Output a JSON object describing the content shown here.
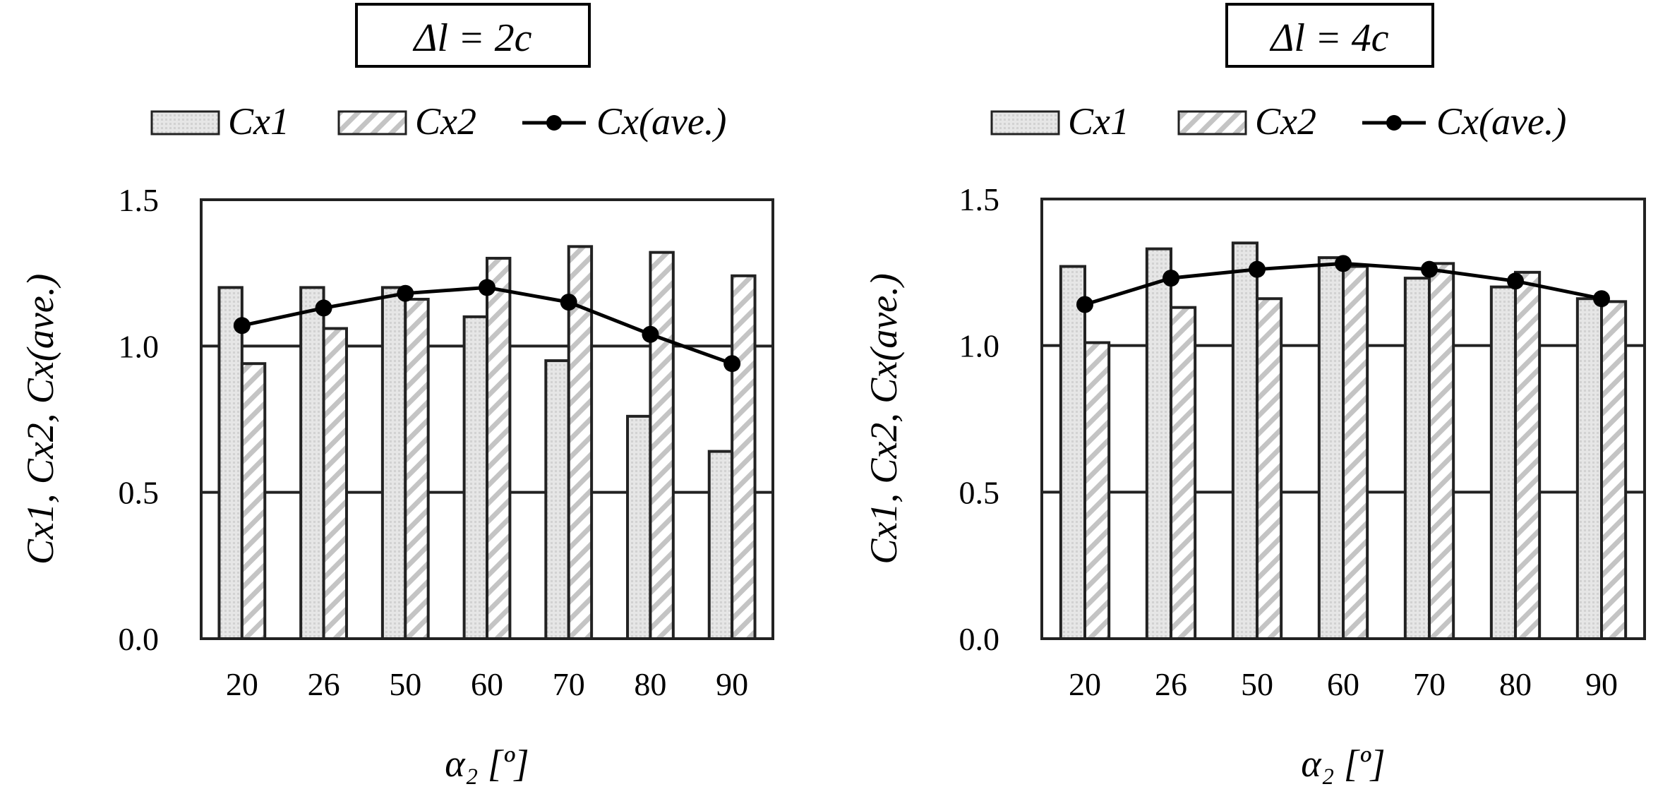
{
  "chart_data": [
    {
      "type": "bar",
      "title": "Δl = 2c",
      "categories": [
        "20",
        "26",
        "50",
        "60",
        "70",
        "80",
        "90"
      ],
      "xlabel": "α₂ [º]",
      "ylabel": "Cx1, Cx2, Cx(ave.)",
      "ylim": [
        0,
        1.5
      ],
      "yticks": [
        "0.0",
        "0.5",
        "1.0",
        "1.5"
      ],
      "grid": true,
      "legend_position": "top",
      "series": [
        {
          "name": "Cx1",
          "kind": "bar",
          "pattern": "dotted",
          "values": [
            1.2,
            1.2,
            1.2,
            1.1,
            0.95,
            0.76,
            0.64
          ]
        },
        {
          "name": "Cx2",
          "kind": "bar",
          "pattern": "hatched",
          "values": [
            0.94,
            1.06,
            1.16,
            1.3,
            1.34,
            1.32,
            1.24
          ]
        },
        {
          "name": "Cx(ave.)",
          "kind": "line",
          "values": [
            1.07,
            1.13,
            1.18,
            1.2,
            1.15,
            1.04,
            0.94
          ]
        }
      ]
    },
    {
      "type": "bar",
      "title": "Δl = 4c",
      "categories": [
        "20",
        "26",
        "50",
        "60",
        "70",
        "80",
        "90"
      ],
      "xlabel": "α₂ [º]",
      "ylabel": "Cx1, Cx2, Cx(ave.)",
      "ylim": [
        0,
        1.5
      ],
      "yticks": [
        "0.0",
        "0.5",
        "1.0",
        "1.5"
      ],
      "grid": true,
      "legend_position": "top",
      "series": [
        {
          "name": "Cx1",
          "kind": "bar",
          "pattern": "dotted",
          "values": [
            1.27,
            1.33,
            1.35,
            1.3,
            1.23,
            1.2,
            1.16
          ]
        },
        {
          "name": "Cx2",
          "kind": "bar",
          "pattern": "hatched",
          "values": [
            1.01,
            1.13,
            1.16,
            1.27,
            1.28,
            1.25,
            1.15
          ]
        },
        {
          "name": "Cx(ave.)",
          "kind": "line",
          "values": [
            1.14,
            1.23,
            1.26,
            1.28,
            1.26,
            1.22,
            1.16
          ]
        }
      ]
    }
  ]
}
